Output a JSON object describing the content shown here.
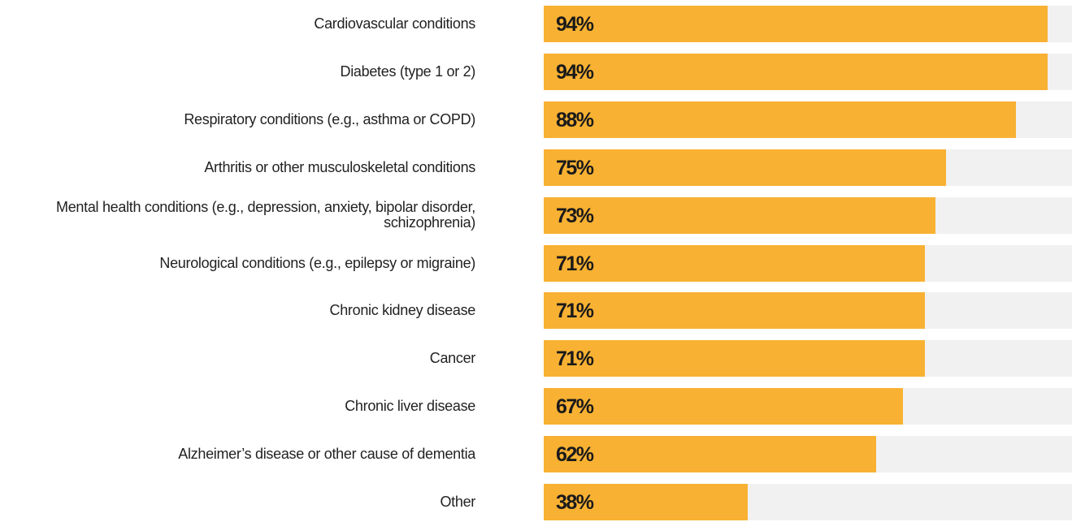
{
  "chart_data": {
    "type": "bar",
    "orientation": "horizontal",
    "categories": [
      "Cardiovascular conditions",
      "Diabetes (type 1 or 2)",
      "Respiratory conditions (e.g., asthma or COPD)",
      "Arthritis or other musculoskeletal conditions",
      "Mental health conditions (e.g., depression, anxiety, bipolar disorder, schizophrenia)",
      "Neurological conditions (e.g., epilepsy or migraine)",
      "Chronic kidney disease",
      "Cancer",
      "Chronic liver disease",
      "Alzheimer’s disease or other cause of dementia",
      "Other"
    ],
    "values": [
      94,
      94,
      88,
      75,
      73,
      71,
      71,
      71,
      67,
      62,
      38
    ],
    "value_labels": [
      "94%",
      "94%",
      "88%",
      "75%",
      "73%",
      "71%",
      "71%",
      "71%",
      "67%",
      "62%",
      "38%"
    ],
    "color": "#f8b133",
    "xlim": [
      0,
      100
    ]
  }
}
